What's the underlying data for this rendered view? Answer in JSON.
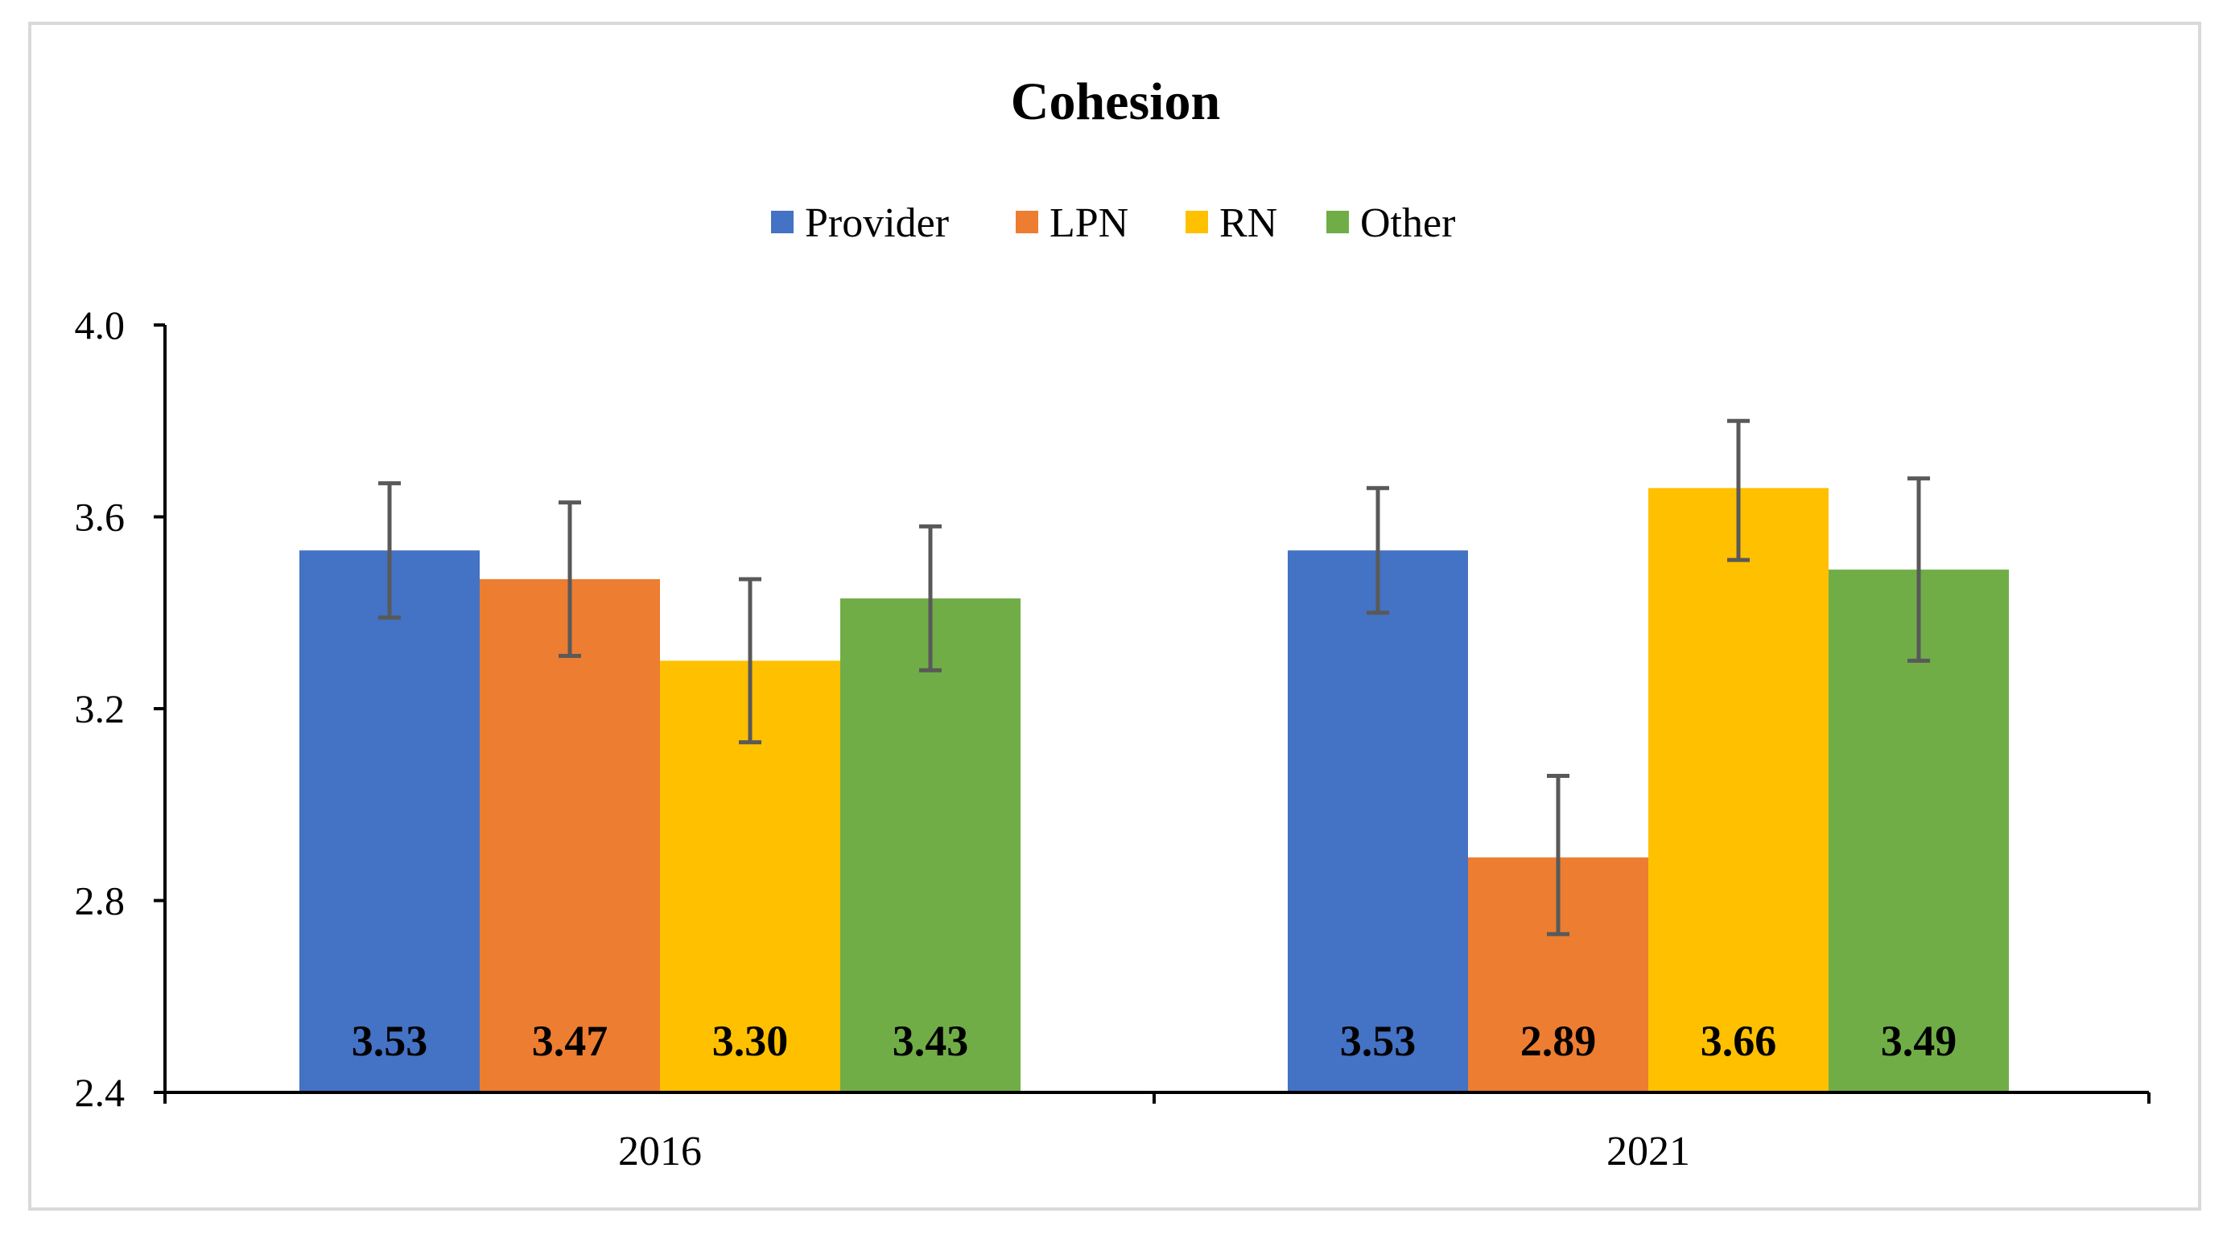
{
  "chart_data": {
    "type": "bar",
    "title": "Cohesion",
    "xlabel": "",
    "ylabel": "",
    "categories": [
      "2016",
      "2021"
    ],
    "ylim": [
      2.4,
      4.0
    ],
    "yticks": [
      2.4,
      2.8,
      3.2,
      3.6,
      4.0
    ],
    "ytick_labels": [
      "2.4",
      "2.8",
      "3.2",
      "3.6",
      "4.0"
    ],
    "grid": false,
    "legend_position": "top-center",
    "series": [
      {
        "name": "Provider",
        "color": "#4472C4",
        "values": [
          3.53,
          3.53
        ],
        "value_labels": [
          "3.53",
          "3.53"
        ],
        "error_low": [
          3.39,
          3.4
        ],
        "error_high": [
          3.67,
          3.66
        ]
      },
      {
        "name": "LPN",
        "color": "#ED7D31",
        "values": [
          3.47,
          2.89
        ],
        "value_labels": [
          "3.47",
          "2.89"
        ],
        "error_low": [
          3.31,
          2.73
        ],
        "error_high": [
          3.63,
          3.06
        ]
      },
      {
        "name": "RN",
        "color": "#FFC000",
        "values": [
          3.3,
          3.66
        ],
        "value_labels": [
          "3.30",
          "3.66"
        ],
        "error_low": [
          3.13,
          3.51
        ],
        "error_high": [
          3.47,
          3.8
        ]
      },
      {
        "name": "Other",
        "color": "#70AD47",
        "values": [
          3.43,
          3.49
        ],
        "value_labels": [
          "3.43",
          "3.49"
        ],
        "error_low": [
          3.28,
          3.3
        ],
        "error_high": [
          3.58,
          3.68
        ]
      }
    ],
    "error_bar_color": "#595959",
    "axis_color": "#000000",
    "frame_color": "#d9d9d9"
  }
}
